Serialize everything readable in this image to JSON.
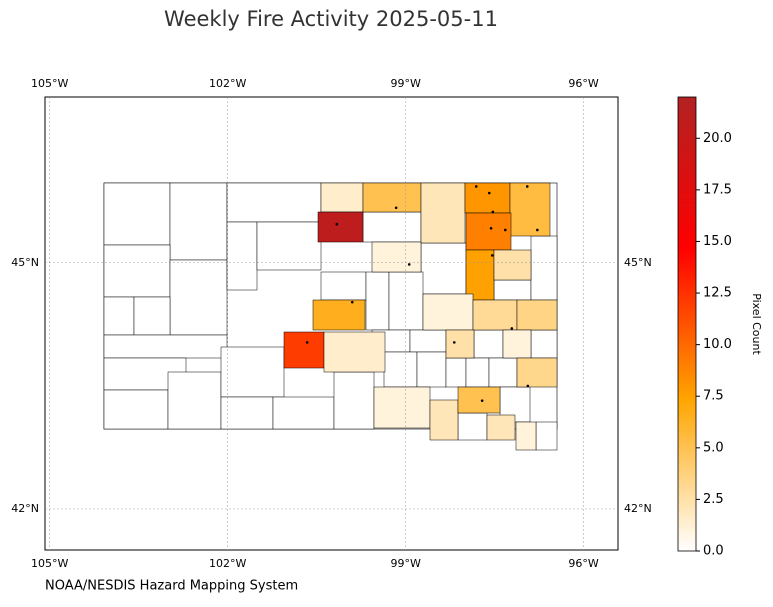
{
  "chart_data": {
    "type": "choropleth",
    "title": "Weekly Fire Activity 2025-05-11",
    "source": "NOAA/NESDIS Hazard Mapping System",
    "colorbar_label": "Pixel Count",
    "xlim": [
      -105.08,
      -95.42
    ],
    "ylim": [
      41.5,
      47.02
    ],
    "xticks": [
      {
        "value": -105,
        "label": "105°W"
      },
      {
        "value": -102,
        "label": "102°W"
      },
      {
        "value": -99,
        "label": "99°W"
      },
      {
        "value": -96,
        "label": "96°W"
      }
    ],
    "yticks": [
      {
        "value": 45,
        "label": "45°N"
      },
      {
        "value": 42,
        "label": "42°N"
      }
    ],
    "grid": true,
    "clim": [
      0,
      22
    ],
    "cticks": [
      {
        "value": 0,
        "label": "0.0"
      },
      {
        "value": 2.5,
        "label": "2.5"
      },
      {
        "value": 5,
        "label": "5.0"
      },
      {
        "value": 7.5,
        "label": "7.5"
      },
      {
        "value": 10,
        "label": "10.0"
      },
      {
        "value": 12.5,
        "label": "12.5"
      },
      {
        "value": 15,
        "label": "15.0"
      },
      {
        "value": 17.5,
        "label": "17.5"
      },
      {
        "value": 20,
        "label": "20.0"
      }
    ],
    "colormap": [
      "#ffffff",
      "#ffa500",
      "#ff0000",
      "#b22222"
    ],
    "values": [
      1.5,
      5,
      2,
      8,
      5.5,
      21,
      9,
      1,
      7.5,
      2.5,
      6.5,
      1,
      3,
      3.5,
      12,
      1.5,
      2.5,
      1,
      3.3,
      1,
      2,
      5,
      2,
      1
    ],
    "fires": {
      "x": [
        -100.16,
        -99.16,
        -97.81,
        -97.59,
        -97.53,
        -97.56,
        -97.32,
        -96.95,
        -96.78,
        -99.9,
        -100.66,
        -98.18,
        -97.71,
        -96.94,
        -97.21,
        -98.94,
        -97.54
      ],
      "y": [
        45.47,
        45.67,
        45.93,
        45.85,
        45.62,
        45.42,
        45.4,
        45.93,
        45.4,
        44.52,
        44.03,
        44.03,
        43.32,
        43.5,
        44.2,
        44.98,
        45.09
      ]
    }
  }
}
